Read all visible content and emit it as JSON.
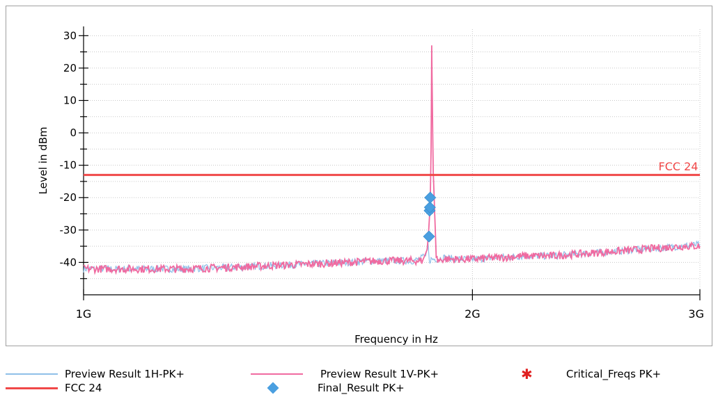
{
  "chart_data": {
    "type": "line",
    "title": "",
    "xlabel": "Frequency in Hz",
    "ylabel": "Level in dBm",
    "x_scale": "log",
    "xlim_ghz": [
      1,
      3
    ],
    "ylim": [
      -50,
      32
    ],
    "x_ticks": [
      {
        "value": 1,
        "label": "1G"
      },
      {
        "value": 2,
        "label": "2G"
      },
      {
        "value": 3,
        "label": "3G"
      }
    ],
    "y_ticks": [
      30,
      20,
      10,
      0,
      -10,
      -20,
      -30,
      -40
    ],
    "y_tick_labels": [
      "30",
      "20",
      "10",
      "0",
      "-10",
      "-20",
      "-30",
      "-40"
    ],
    "grid": true,
    "colors": {
      "preview_h": "#8fbfe8",
      "preview_v": "#f06aa0",
      "limit": "#f04848",
      "final": "#4a9fe0",
      "critical": "#e02020",
      "grid": "#c8c8c8",
      "frame": "#a0a0a0"
    },
    "series": [
      {
        "name": "Preview Result 1H-PK+",
        "x_ghz": [
          1.0,
          1.1,
          1.2,
          1.3,
          1.4,
          1.5,
          1.6,
          1.7,
          1.8,
          1.82,
          1.84,
          1.848,
          1.852,
          1.856,
          1.86,
          1.87,
          1.9,
          1.95,
          2.0,
          2.1,
          2.2,
          2.3,
          2.4,
          2.5,
          2.6,
          2.7,
          2.8,
          2.9,
          3.0
        ],
        "values": [
          -42,
          -42,
          -42,
          -41.5,
          -41,
          -40.5,
          -40,
          -39.5,
          -39.5,
          -39,
          -38,
          -34,
          -40,
          -39,
          -39,
          -39,
          -38.5,
          -39,
          -39,
          -38.5,
          -38,
          -38,
          -37.5,
          -37,
          -36.5,
          -36,
          -35.5,
          -35,
          -34.5
        ]
      },
      {
        "name": "Preview Result 1V-PK+",
        "x_ghz": [
          1.0,
          1.1,
          1.2,
          1.3,
          1.4,
          1.5,
          1.6,
          1.7,
          1.8,
          1.83,
          1.845,
          1.85,
          1.855,
          1.858,
          1.86,
          1.862,
          1.865,
          1.87,
          1.875,
          1.88,
          1.9,
          1.95,
          2.0,
          2.1,
          2.2,
          2.3,
          2.4,
          2.5,
          2.6,
          2.7,
          2.8,
          2.9,
          3.0
        ],
        "values": [
          -42,
          -42,
          -42,
          -41.5,
          -41,
          -40.5,
          -40,
          -39.5,
          -39.5,
          -39.5,
          -36,
          -30,
          -22,
          -5,
          27,
          10,
          -12,
          -25,
          -38,
          -39.5,
          -39,
          -39,
          -39,
          -38.5,
          -38,
          -38,
          -37.5,
          -37,
          -36.5,
          -36,
          -35.5,
          -35,
          -35
        ]
      },
      {
        "name": "FCC 24",
        "x_ghz": [
          1.0,
          3.0
        ],
        "values": [
          -13,
          -13
        ]
      },
      {
        "name": "Final_Result PK+",
        "x_ghz": [
          1.851,
          1.853,
          1.854,
          1.855
        ],
        "values": [
          -32,
          -24,
          -23,
          -20
        ]
      },
      {
        "name": "Critical_Freqs PK+",
        "x_ghz": [],
        "values": []
      }
    ],
    "annotations": [
      {
        "text": "FCC 24",
        "x_ghz": 2.78,
        "y": -10
      }
    ],
    "legend": {
      "placement": "bottom",
      "entries": [
        {
          "label": "Preview Result 1H-PK+",
          "symbol": "line",
          "color": "#8fbfe8"
        },
        {
          "label": "Preview Result 1V-PK+",
          "symbol": "line",
          "color": "#f06aa0"
        },
        {
          "label": "Critical_Freqs PK+",
          "symbol": "asterisk",
          "color": "#e02020"
        },
        {
          "label": "FCC 24",
          "symbol": "line",
          "color": "#f04848"
        },
        {
          "label": "Final_Result PK+",
          "symbol": "diamond",
          "color": "#4a9fe0"
        }
      ]
    }
  }
}
